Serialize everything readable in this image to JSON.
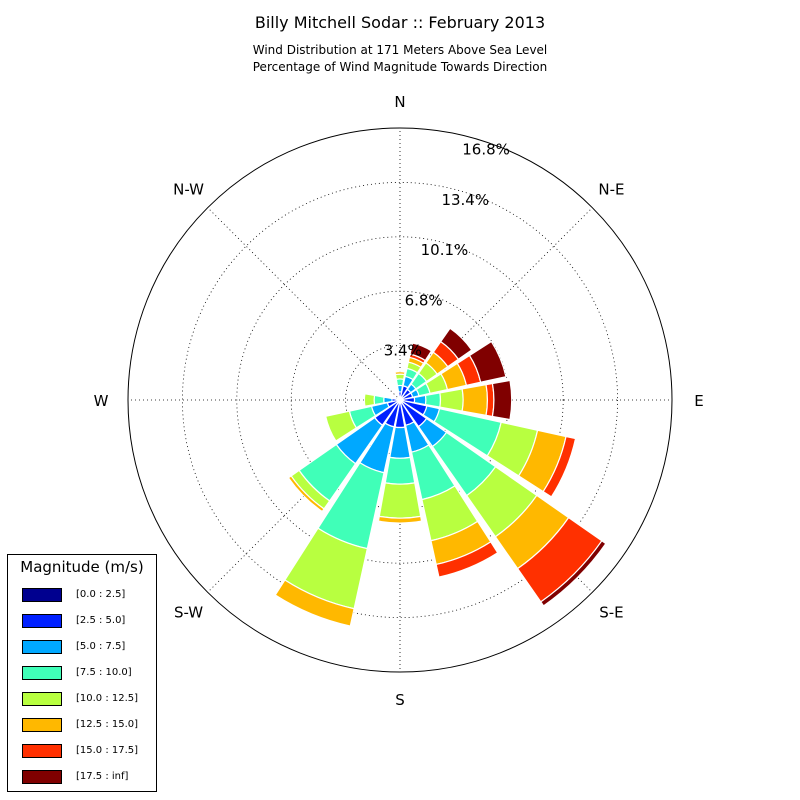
{
  "chart_data": {
    "type": "windrose",
    "title": "Billy Mitchell Sodar :: February 2013",
    "subtitle_lines": [
      "Wind Distribution at 171 Meters Above Sea Level",
      "Percentage of Wind Magnitude Towards Direction"
    ],
    "radial_max": 16.8,
    "ring_labels": [
      "3.4%",
      "6.8%",
      "10.1%",
      "13.4%",
      "16.8%"
    ],
    "direction_labels": [
      "N",
      "N-E",
      "E",
      "S-E",
      "S",
      "S-W",
      "W",
      "N-W"
    ],
    "legend": {
      "title": "Magnitude (m/s)",
      "placement": "lower-left",
      "bins": [
        "[0.0 : 2.5]",
        "[2.5 : 5.0]",
        "[5.0 : 7.5]",
        "[7.5 : 10.0]",
        "[10.0 : 12.5]",
        "[12.5 : 15.0]",
        "[15.0 : 17.5]",
        "[17.5 : inf]"
      ],
      "colors": [
        "#00008f",
        "#0020ff",
        "#00a8ff",
        "#40ffb8",
        "#b8ff40",
        "#ffb800",
        "#ff3000",
        "#800000"
      ]
    },
    "sectors": [
      {
        "direction_deg": 0.0,
        "cumulative": [
          0.1,
          0.5,
          0.9,
          1.3,
          1.6,
          1.75
        ]
      },
      {
        "direction_deg": 22.5,
        "cumulative": [
          0.1,
          0.9,
          1.5,
          2.0,
          2.4,
          2.7,
          2.9,
          3.6
        ]
      },
      {
        "direction_deg": 45.0,
        "cumulative": [
          0.1,
          0.8,
          1.2,
          2.0,
          2.8,
          3.6,
          4.4,
          5.4
        ]
      },
      {
        "direction_deg": 67.5,
        "cumulative": [
          0.1,
          0.8,
          1.2,
          1.9,
          3.0,
          4.2,
          5.1,
          6.7
        ]
      },
      {
        "direction_deg": 90.0,
        "cumulative": [
          0.1,
          0.9,
          1.6,
          2.5,
          3.9,
          5.4,
          5.8,
          6.9
        ]
      },
      {
        "direction_deg": 112.5,
        "cumulative": [
          0.1,
          1.7,
          2.5,
          6.4,
          8.7,
          10.5,
          11.1
        ]
      },
      {
        "direction_deg": 135.0,
        "cumulative": [
          0.1,
          2.0,
          3.5,
          7.2,
          10.3,
          12.7,
          15.2,
          15.5
        ]
      },
      {
        "direction_deg": 157.5,
        "cumulative": [
          0.1,
          1.6,
          3.3,
          6.3,
          8.9,
          10.4,
          11.2
        ]
      },
      {
        "direction_deg": 180.0,
        "cumulative": [
          0.1,
          1.7,
          3.6,
          5.2,
          7.3,
          7.6
        ]
      },
      {
        "direction_deg": 202.5,
        "cumulative": [
          0.1,
          1.7,
          4.6,
          9.4,
          13.2,
          14.3
        ]
      },
      {
        "direction_deg": 225.0,
        "cumulative": [
          0.1,
          1.9,
          4.8,
          7.6,
          8.2,
          8.4
        ]
      },
      {
        "direction_deg": 247.5,
        "cumulative": [
          0.1,
          0.8,
          1.8,
          3.2,
          4.7
        ]
      },
      {
        "direction_deg": 270.0,
        "cumulative": [
          0.1,
          0.5,
          1.0,
          1.6,
          2.2
        ]
      },
      {
        "direction_deg": 292.5,
        "cumulative": [
          0.1,
          0.2,
          0.3
        ]
      },
      {
        "direction_deg": 315.0,
        "cumulative": [
          0.1,
          0.2
        ]
      },
      {
        "direction_deg": 337.5,
        "cumulative": [
          0.1,
          0.2
        ]
      }
    ]
  }
}
